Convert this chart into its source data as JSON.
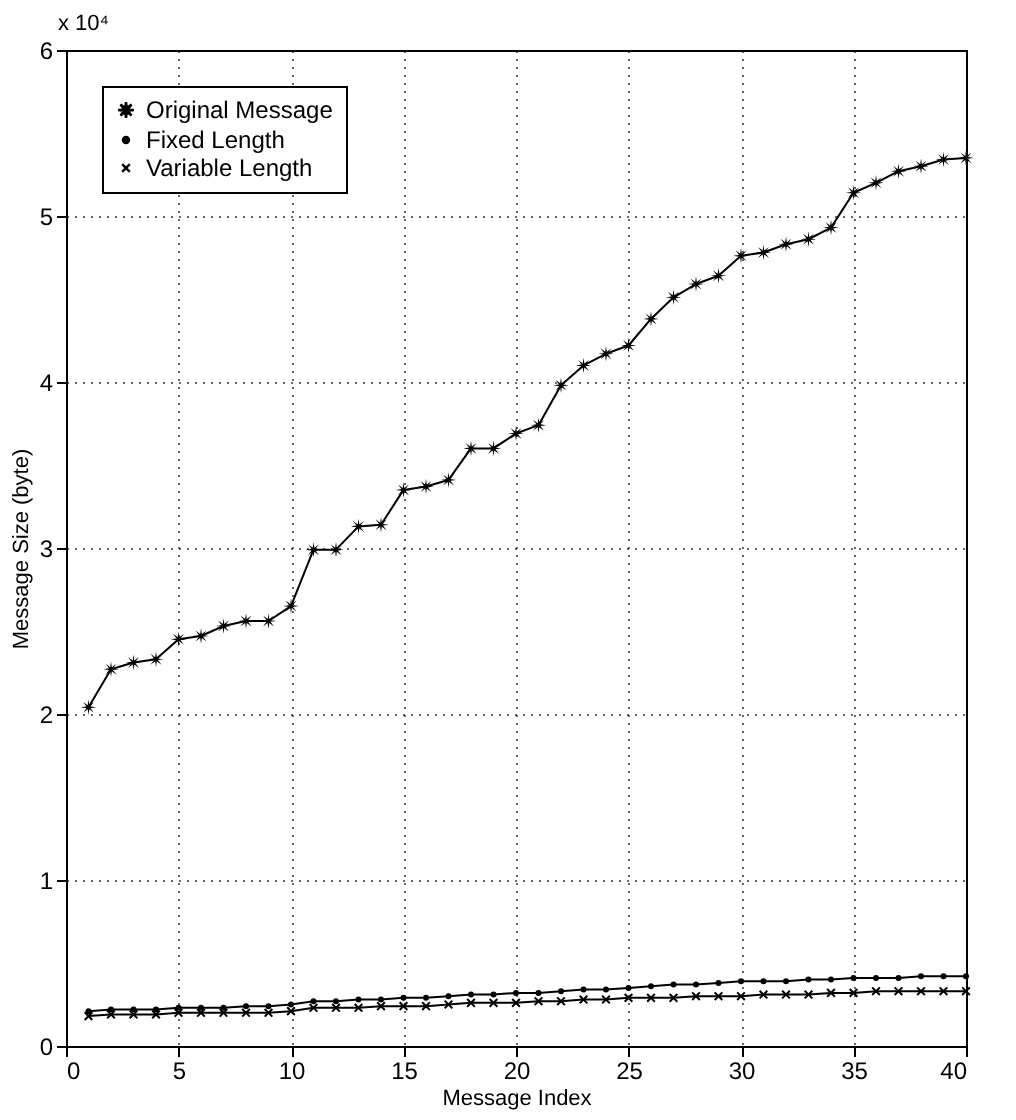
{
  "chart_data": {
    "type": "line",
    "xlabel": "Message Index",
    "ylabel": "Message Size (byte)",
    "annotations": [
      "x 10⁴"
    ],
    "x": [
      1,
      2,
      3,
      4,
      5,
      6,
      7,
      8,
      9,
      10,
      11,
      12,
      13,
      14,
      15,
      16,
      17,
      18,
      19,
      20,
      21,
      22,
      23,
      24,
      25,
      26,
      27,
      28,
      29,
      30,
      31,
      32,
      33,
      34,
      35,
      36,
      37,
      38,
      39,
      40
    ],
    "series": [
      {
        "name": "Original Message",
        "color": "#000000",
        "marker": "star",
        "values": [
          2.04,
          2.27,
          2.31,
          2.33,
          2.45,
          2.47,
          2.53,
          2.56,
          2.56,
          2.65,
          2.99,
          2.99,
          3.13,
          3.14,
          3.35,
          3.37,
          3.41,
          3.6,
          3.6,
          3.69,
          3.74,
          3.98,
          4.1,
          4.17,
          4.22,
          4.38,
          4.51,
          4.59,
          4.64,
          4.76,
          4.78,
          4.83,
          4.86,
          4.93,
          5.14,
          5.2,
          5.27,
          5.3,
          5.34,
          5.35
        ]
      },
      {
        "name": "Fixed Length",
        "color": "#000000",
        "marker": "circle",
        "values": [
          0.21,
          0.22,
          0.22,
          0.22,
          0.23,
          0.23,
          0.23,
          0.24,
          0.24,
          0.25,
          0.27,
          0.27,
          0.28,
          0.28,
          0.29,
          0.29,
          0.3,
          0.31,
          0.31,
          0.32,
          0.32,
          0.33,
          0.34,
          0.34,
          0.35,
          0.36,
          0.37,
          0.37,
          0.38,
          0.39,
          0.39,
          0.39,
          0.4,
          0.4,
          0.41,
          0.41,
          0.41,
          0.42,
          0.42,
          0.42
        ]
      },
      {
        "name": "Variable Length",
        "color": "#000000",
        "marker": "cross",
        "values": [
          0.18,
          0.19,
          0.19,
          0.19,
          0.2,
          0.2,
          0.2,
          0.2,
          0.2,
          0.21,
          0.23,
          0.23,
          0.23,
          0.24,
          0.24,
          0.24,
          0.25,
          0.26,
          0.26,
          0.26,
          0.27,
          0.27,
          0.28,
          0.28,
          0.29,
          0.29,
          0.29,
          0.3,
          0.3,
          0.3,
          0.31,
          0.31,
          0.31,
          0.32,
          0.32,
          0.33,
          0.33,
          0.33,
          0.33,
          0.33
        ]
      }
    ],
    "xlim": [
      0,
      40
    ],
    "xticks": [
      0,
      5,
      10,
      15,
      20,
      25,
      30,
      35,
      40
    ],
    "ylim": [
      0,
      6
    ],
    "yticks": [
      0,
      1,
      2,
      3,
      4,
      5,
      6
    ],
    "grid": true,
    "legend": "top left",
    "line_style": "solid"
  }
}
